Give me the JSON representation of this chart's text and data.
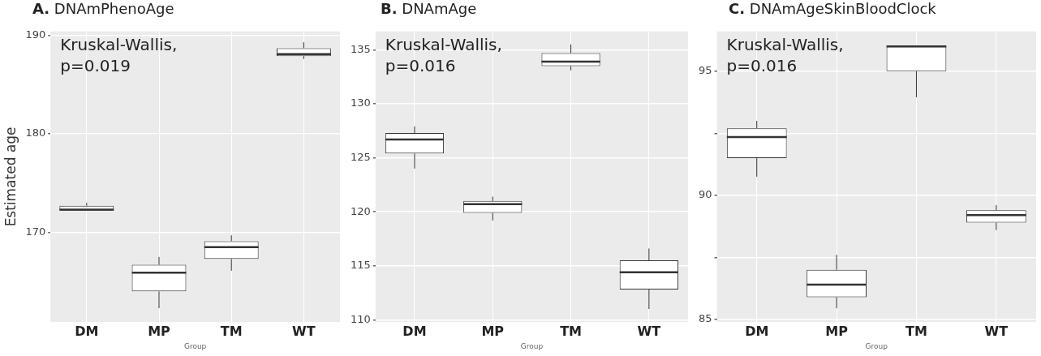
{
  "chart_data": [
    {
      "type": "box",
      "title": "A. DNAmPhenoAge",
      "xlabel": "Group",
      "ylabel": "Estimated age",
      "categories": [
        "DM",
        "MP",
        "TM",
        "WT"
      ],
      "boxes": [
        {
          "low": 172.2,
          "q1": 172.2,
          "median": 172.3,
          "q3": 172.7,
          "high": 173.0
        },
        {
          "low": 162.3,
          "q1": 164.0,
          "median": 165.9,
          "q3": 166.7,
          "high": 167.5
        },
        {
          "low": 166.1,
          "q1": 167.3,
          "median": 168.5,
          "q3": 169.1,
          "high": 169.7
        },
        {
          "low": 187.6,
          "q1": 187.9,
          "median": 188.1,
          "q3": 188.7,
          "high": 189.3
        }
      ],
      "ylim": [
        160.9,
        190.4
      ],
      "yticks": [
        170,
        180,
        190
      ],
      "grid": true,
      "annotations": [
        "Kruskal-Wallis,\np=0.019"
      ]
    },
    {
      "type": "box",
      "title": "B. DNAmAge",
      "xlabel": "Group",
      "categories": [
        "DM",
        "MP",
        "TM",
        "WT"
      ],
      "boxes": [
        {
          "low": 124.0,
          "q1": 125.4,
          "median": 126.7,
          "q3": 127.3,
          "high": 127.9
        },
        {
          "low": 119.2,
          "q1": 119.9,
          "median": 120.7,
          "q3": 121.0,
          "high": 121.4
        },
        {
          "low": 133.1,
          "q1": 133.5,
          "median": 133.9,
          "q3": 134.7,
          "high": 135.5
        },
        {
          "low": 111.0,
          "q1": 112.8,
          "median": 114.4,
          "q3": 115.5,
          "high": 116.6
        }
      ],
      "ylim": [
        109.8,
        136.7
      ],
      "yticks": [
        110,
        115,
        120,
        125,
        130,
        135
      ],
      "grid": true,
      "annotations": [
        "Kruskal-Wallis,\np=0.016"
      ]
    },
    {
      "type": "box",
      "title": "C. DNAmAgeSkinBloodClock",
      "xlabel": "Group",
      "categories": [
        "DM",
        "MP",
        "TM",
        "WT"
      ],
      "boxes": [
        {
          "low": 90.75,
          "q1": 91.5,
          "median": 92.35,
          "q3": 92.7,
          "high": 93.0
        },
        {
          "low": 85.45,
          "q1": 85.9,
          "median": 86.4,
          "q3": 87.0,
          "high": 87.6
        },
        {
          "low": 93.95,
          "q1": 95.0,
          "median": 96.0,
          "q3": 96.0,
          "high": 96.0
        },
        {
          "low": 88.6,
          "q1": 88.9,
          "median": 89.2,
          "q3": 89.4,
          "high": 89.6
        }
      ],
      "ylim": [
        84.9,
        96.6
      ],
      "yticks": [
        85,
        {
          "value": 87.5,
          "label": null
        },
        90,
        {
          "value": 92.5,
          "label": null
        },
        95
      ],
      "grid": true,
      "annotations": [
        "Kruskal-Wallis,\np=0.016"
      ]
    }
  ]
}
